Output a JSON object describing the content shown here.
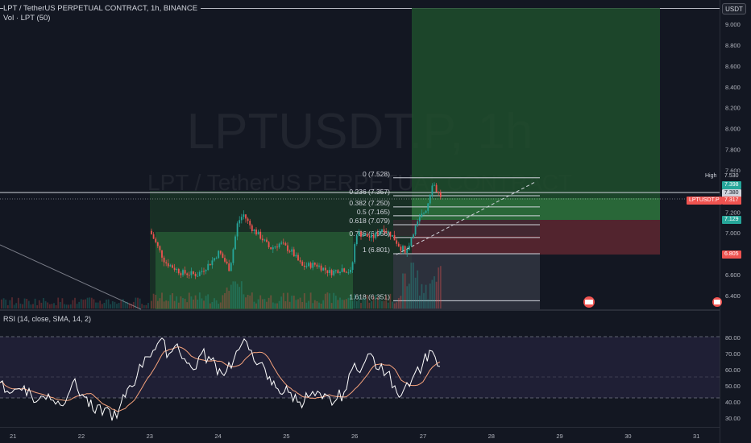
{
  "header": {
    "symbol_line": "LPT / TetherUS PERPETUAL CONTRACT, 1h, BINANCE",
    "volume_line": "Vol · LPT (50)",
    "currency_badge": "USDT"
  },
  "watermark": {
    "ticker": "LPTUSDT.P, 1h",
    "description": "LPT / TetherUS PERPETUAL CONTRACT"
  },
  "price_axis": {
    "ticks": [
      "9.000",
      "8.800",
      "8.600",
      "8.400",
      "8.200",
      "8.000",
      "7.800",
      "7.600",
      "7.200",
      "7.000",
      "6.600",
      "6.400"
    ]
  },
  "price_tags": {
    "high_label": "High",
    "high_value": "7.530",
    "tp_value": "7.398",
    "mid_value": "7.380",
    "last_symbol": "LPTUSDT.P",
    "last_value": "7.317",
    "entry_value": "7.129",
    "stop_value": "6.805"
  },
  "fib_levels": [
    {
      "label": "0 (7.528)",
      "price": 7.528
    },
    {
      "label": "0.236 (7.357)",
      "price": 7.357
    },
    {
      "label": "0.382 (7.250)",
      "price": 7.25
    },
    {
      "label": "0.5 (7.165)",
      "price": 7.165
    },
    {
      "label": "0.618 (7.079)",
      "price": 7.079
    },
    {
      "label": "0.786 (6.956)",
      "price": 6.956
    },
    {
      "label": "1 (6.801)",
      "price": 6.801
    },
    {
      "label": "1.618 (6.351)",
      "price": 6.351
    }
  ],
  "rsi": {
    "title": "RSI (14, close, SMA, 14, 2)",
    "ticks": [
      "80.00",
      "70.00",
      "60.00",
      "50.00",
      "40.00",
      "30.00"
    ]
  },
  "time_axis": {
    "labels": [
      "21",
      "22",
      "23",
      "24",
      "25",
      "26",
      "27",
      "28",
      "29",
      "30",
      "31"
    ]
  },
  "colors": {
    "background": "#131722",
    "up": "#26a69a",
    "down": "#ef5350",
    "rsi_line": "#ffffff",
    "rsi_ma": "#f7a37c",
    "profit_zone": "#1b5e20",
    "loss_zone": "#b71c1c"
  },
  "chart_data": {
    "type": "candlestick",
    "title": "LPT / TetherUS PERPETUAL CONTRACT, 1h, BINANCE",
    "x_range": [
      "21",
      "31"
    ],
    "ylim": [
      6.3,
      9.1
    ],
    "rsi_ylim": [
      30,
      80
    ]
  }
}
